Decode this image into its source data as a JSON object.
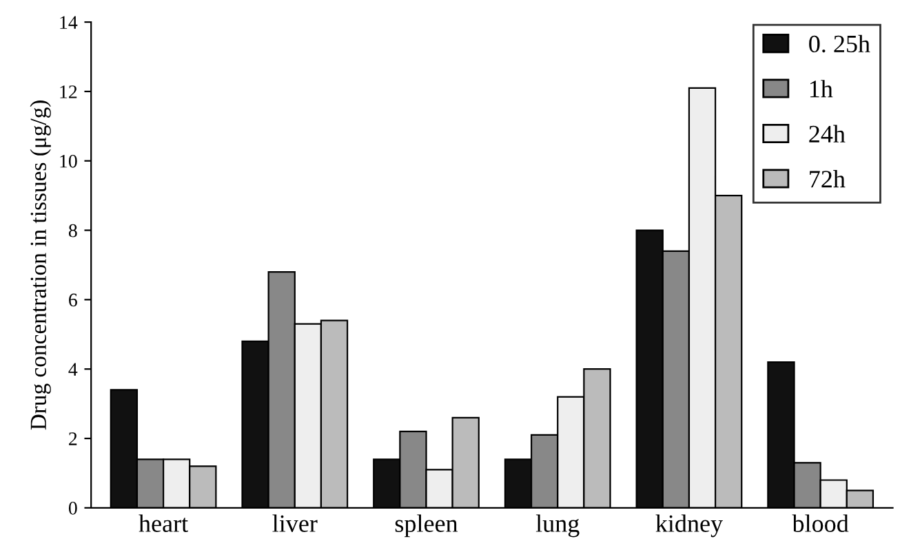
{
  "chart_data": {
    "type": "bar",
    "ylabel": "Drug concentration in tissues (μg/g)",
    "categories": [
      "heart",
      "liver",
      "spleen",
      "lung",
      "kidney",
      "blood"
    ],
    "series": [
      {
        "name": "0. 25h",
        "color": "#111111",
        "values": [
          3.4,
          4.8,
          1.4,
          1.4,
          8.0,
          4.2
        ]
      },
      {
        "name": "1h",
        "color": "#888888",
        "values": [
          1.4,
          6.8,
          2.2,
          2.1,
          7.4,
          1.3
        ]
      },
      {
        "name": "24h",
        "color": "#eeeeee",
        "values": [
          1.4,
          5.3,
          1.1,
          3.2,
          12.1,
          0.8
        ]
      },
      {
        "name": "72h",
        "color": "#bbbbbb",
        "values": [
          1.2,
          5.4,
          2.6,
          4.0,
          9.0,
          0.5
        ]
      }
    ],
    "ylim": [
      0,
      14
    ],
    "yticks": [
      0,
      2,
      4,
      6,
      8,
      10,
      12,
      14
    ],
    "grid": false,
    "legend": "top right"
  }
}
